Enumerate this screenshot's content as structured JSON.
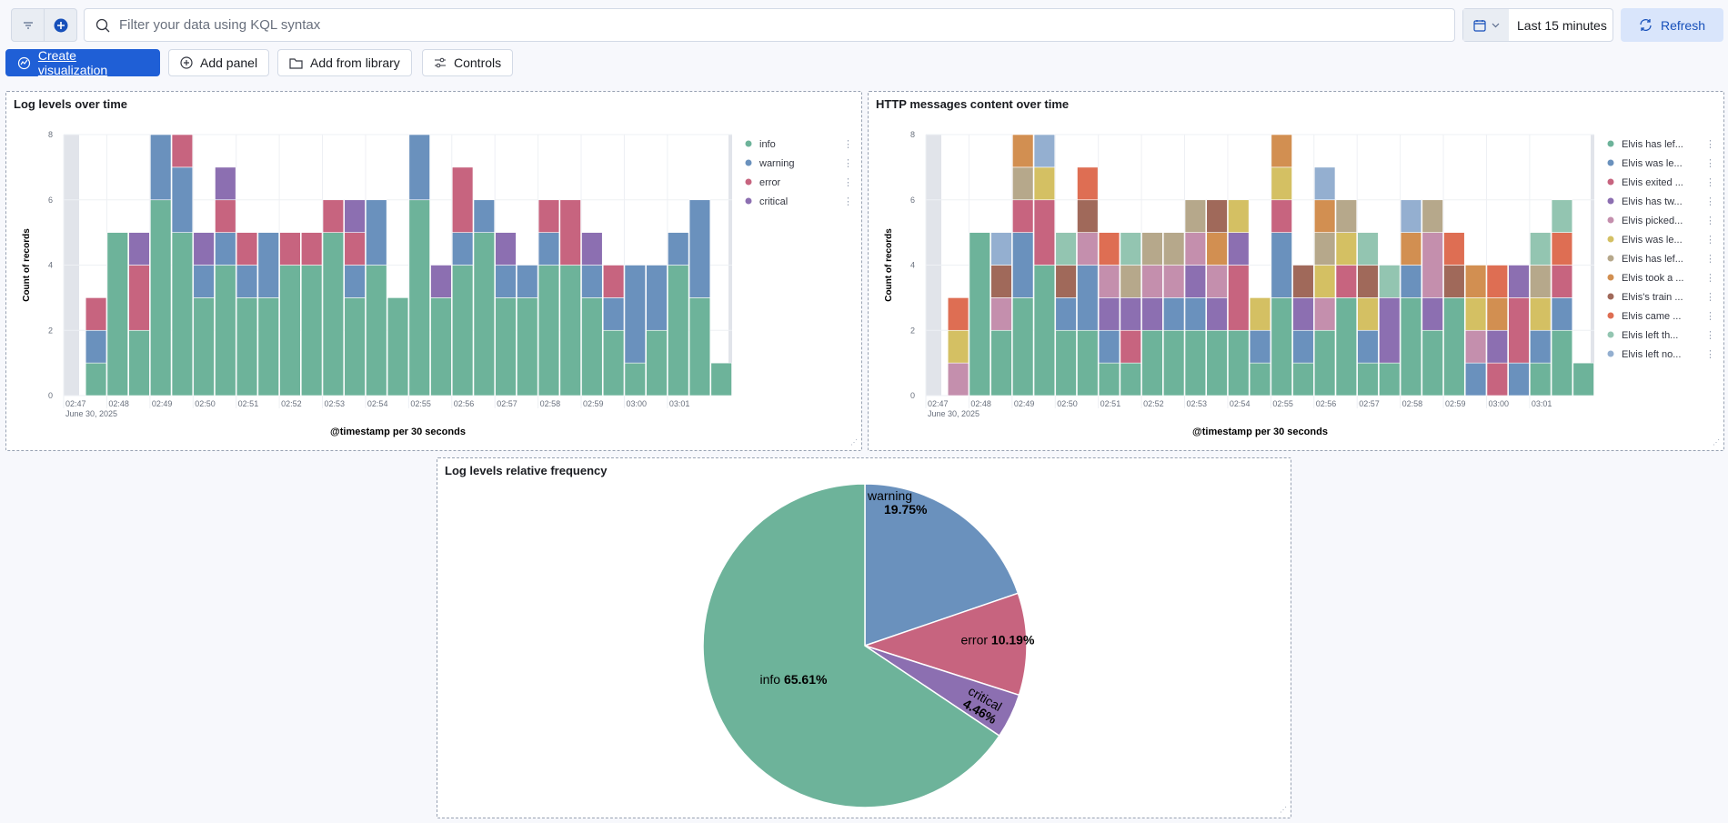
{
  "toolbar": {
    "search_placeholder": "Filter your data using KQL syntax",
    "time_range": "Last 15 minutes",
    "refresh": "Refresh",
    "create_visualization": "Create visualization",
    "add_panel": "Add panel",
    "add_from_library": "Add from library",
    "controls": "Controls"
  },
  "icons": [
    "filter-icon",
    "plus-circle-icon",
    "search-icon",
    "calendar-icon",
    "chevron-down-icon",
    "refresh-icon",
    "visualize-icon",
    "folder-icon",
    "controls-icon"
  ],
  "chart_data": [
    {
      "type": "bar",
      "stacked": true,
      "title": "Log levels over time",
      "xlabel": "@timestamp per 30 seconds",
      "ylabel": "Count of records",
      "ylim": [
        0,
        8
      ],
      "yticks": [
        "0",
        "2",
        "4",
        "6",
        "8"
      ],
      "xticks": [
        "02:47",
        "02:48",
        "02:49",
        "02:50",
        "02:51",
        "02:52",
        "02:53",
        "02:54",
        "02:55",
        "02:56",
        "02:57",
        "02:58",
        "02:59",
        "03:00",
        "03:01"
      ],
      "xdate": "June 30, 2025",
      "legend": "right",
      "categories": [
        "02:47:30",
        "02:48:00",
        "02:48:30",
        "02:49:00",
        "02:49:30",
        "02:50:00",
        "02:50:30",
        "02:51:00",
        "02:51:30",
        "02:52:00",
        "02:52:30",
        "02:53:00",
        "02:53:30",
        "02:54:00",
        "02:54:30",
        "02:55:00",
        "02:55:30",
        "02:56:00",
        "02:56:30",
        "02:57:00",
        "02:57:30",
        "02:58:00",
        "02:58:30",
        "02:59:00",
        "02:59:30",
        "03:00:00",
        "03:00:30",
        "03:01:00",
        "03:01:30",
        "03:02:00"
      ],
      "series": [
        {
          "name": "info",
          "color": "#6db39a",
          "values": [
            1,
            5,
            2,
            6,
            5,
            3,
            4,
            3,
            3,
            4,
            4,
            5,
            3,
            4,
            3,
            6,
            3,
            4,
            5,
            3,
            3,
            4,
            4,
            3,
            2,
            1,
            2,
            4,
            3,
            1
          ]
        },
        {
          "name": "warning",
          "color": "#6a91bd",
          "values": [
            1,
            0,
            0,
            2,
            2,
            1,
            1,
            1,
            2,
            0,
            0,
            0,
            1,
            2,
            0,
            2,
            0,
            1,
            1,
            1,
            1,
            1,
            0,
            1,
            1,
            3,
            2,
            1,
            3,
            0
          ]
        },
        {
          "name": "error",
          "color": "#c7647f",
          "values": [
            1,
            0,
            2,
            0,
            1,
            0,
            1,
            1,
            0,
            1,
            1,
            1,
            1,
            0,
            0,
            0,
            0,
            2,
            0,
            0,
            0,
            1,
            2,
            0,
            1,
            0,
            0,
            0,
            0,
            0
          ]
        },
        {
          "name": "critical",
          "color": "#8c6fb1",
          "values": [
            0,
            0,
            1,
            0,
            0,
            1,
            1,
            0,
            0,
            0,
            0,
            0,
            1,
            0,
            0,
            0,
            1,
            0,
            0,
            1,
            0,
            0,
            0,
            1,
            0,
            0,
            0,
            0,
            0,
            0
          ]
        }
      ]
    },
    {
      "type": "bar",
      "stacked": true,
      "title": "HTTP messages content over time",
      "xlabel": "@timestamp per 30 seconds",
      "ylabel": "Count of records",
      "ylim": [
        0,
        8
      ],
      "yticks": [
        "0",
        "2",
        "4",
        "6",
        "8"
      ],
      "xticks": [
        "02:47",
        "02:48",
        "02:49",
        "02:50",
        "02:51",
        "02:52",
        "02:53",
        "02:54",
        "02:55",
        "02:56",
        "02:57",
        "02:58",
        "02:59",
        "03:00",
        "03:01"
      ],
      "xdate": "June 30, 2025",
      "legend": "right",
      "categories": [
        "02:47:30",
        "02:48:00",
        "02:48:30",
        "02:49:00",
        "02:49:30",
        "02:50:00",
        "02:50:30",
        "02:51:00",
        "02:51:30",
        "02:52:00",
        "02:52:30",
        "02:53:00",
        "02:53:30",
        "02:54:00",
        "02:54:30",
        "02:55:00",
        "02:55:30",
        "02:56:00",
        "02:56:30",
        "02:57:00",
        "02:57:30",
        "02:58:00",
        "02:58:30",
        "02:59:00",
        "02:59:30",
        "03:00:00",
        "03:00:30",
        "03:01:00",
        "03:01:30",
        "03:02:00"
      ],
      "series": [
        {
          "name": "Elvis has lef...",
          "color": "#6db39a",
          "values": [
            0,
            5,
            2,
            3,
            4,
            2,
            2,
            1,
            1,
            2,
            2,
            2,
            2,
            2,
            1,
            3,
            1,
            2,
            3,
            1,
            1,
            3,
            2,
            3,
            0,
            0,
            0,
            1,
            2,
            1
          ]
        },
        {
          "name": "Elvis was le...",
          "color": "#6a91bd",
          "values": [
            0,
            0,
            0,
            2,
            0,
            1,
            2,
            1,
            0,
            0,
            1,
            1,
            0,
            0,
            1,
            2,
            1,
            0,
            0,
            1,
            0,
            1,
            0,
            0,
            1,
            0,
            1,
            1,
            1,
            0
          ]
        },
        {
          "name": "Elvis exited ...",
          "color": "#c7647f",
          "values": [
            0,
            0,
            0,
            1,
            2,
            0,
            0,
            0,
            1,
            0,
            0,
            0,
            0,
            2,
            0,
            1,
            0,
            0,
            1,
            0,
            0,
            0,
            0,
            0,
            0,
            1,
            2,
            0,
            1,
            0
          ]
        },
        {
          "name": "Elvis has tw...",
          "color": "#8c6fb1",
          "values": [
            0,
            0,
            0,
            0,
            0,
            0,
            0,
            1,
            1,
            1,
            0,
            1,
            1,
            1,
            0,
            0,
            1,
            0,
            0,
            0,
            2,
            0,
            1,
            0,
            0,
            1,
            1,
            0,
            0,
            0
          ]
        },
        {
          "name": "Elvis picked...",
          "color": "#c48fad",
          "values": [
            1,
            0,
            1,
            0,
            0,
            0,
            1,
            1,
            0,
            1,
            1,
            1,
            1,
            0,
            0,
            0,
            0,
            1,
            0,
            0,
            0,
            0,
            2,
            0,
            1,
            0,
            0,
            0,
            0,
            0
          ]
        },
        {
          "name": "Elvis was le...",
          "color": "#d4c063",
          "values": [
            1,
            0,
            0,
            0,
            1,
            0,
            0,
            0,
            0,
            0,
            0,
            0,
            0,
            1,
            1,
            1,
            0,
            1,
            1,
            1,
            0,
            0,
            0,
            0,
            1,
            0,
            0,
            1,
            0,
            0
          ]
        },
        {
          "name": "Elvis has lef...",
          "color": "#b6a88b",
          "values": [
            0,
            0,
            0,
            1,
            0,
            0,
            0,
            0,
            1,
            1,
            1,
            1,
            0,
            0,
            0,
            0,
            0,
            1,
            1,
            0,
            0,
            0,
            1,
            0,
            0,
            0,
            0,
            1,
            0,
            0
          ]
        },
        {
          "name": "Elvis took a ...",
          "color": "#d28f51",
          "values": [
            0,
            0,
            0,
            1,
            0,
            0,
            0,
            0,
            0,
            0,
            0,
            0,
            1,
            0,
            0,
            1,
            0,
            1,
            0,
            0,
            0,
            1,
            0,
            0,
            1,
            1,
            0,
            0,
            0,
            0
          ]
        },
        {
          "name": "Elvis's train ...",
          "color": "#a0695a",
          "values": [
            0,
            0,
            1,
            0,
            0,
            1,
            1,
            0,
            0,
            0,
            0,
            0,
            1,
            0,
            0,
            0,
            1,
            0,
            0,
            1,
            0,
            0,
            0,
            1,
            0,
            0,
            0,
            0,
            0,
            0
          ]
        },
        {
          "name": "Elvis came ...",
          "color": "#de6e53",
          "values": [
            1,
            0,
            0,
            0,
            0,
            0,
            1,
            1,
            0,
            0,
            0,
            0,
            0,
            0,
            0,
            0,
            0,
            0,
            0,
            0,
            0,
            0,
            0,
            1,
            0,
            1,
            0,
            0,
            1,
            0
          ]
        },
        {
          "name": "Elvis left th...",
          "color": "#93c5b1",
          "values": [
            0,
            0,
            0,
            0,
            0,
            1,
            0,
            0,
            1,
            0,
            0,
            0,
            0,
            0,
            0,
            0,
            0,
            0,
            0,
            1,
            1,
            0,
            0,
            0,
            0,
            0,
            0,
            1,
            1,
            0
          ]
        },
        {
          "name": "Elvis left no...",
          "color": "#94afd0",
          "values": [
            0,
            0,
            1,
            0,
            1,
            0,
            0,
            0,
            0,
            0,
            0,
            0,
            0,
            0,
            0,
            0,
            0,
            1,
            0,
            0,
            0,
            1,
            0,
            0,
            0,
            0,
            0,
            0,
            0,
            0
          ]
        }
      ]
    },
    {
      "type": "pie",
      "title": "Log levels relative frequency",
      "slices": [
        {
          "label": "warning",
          "percent": "19.75%",
          "value": 19.75,
          "color": "#6a91bd"
        },
        {
          "label": "error",
          "percent": "10.19%",
          "value": 10.19,
          "color": "#c7647f"
        },
        {
          "label": "critical",
          "percent": "4.46%",
          "value": 4.46,
          "color": "#8c6fb1"
        },
        {
          "label": "info",
          "percent": "65.61%",
          "value": 65.61,
          "color": "#6db39a"
        }
      ]
    }
  ]
}
